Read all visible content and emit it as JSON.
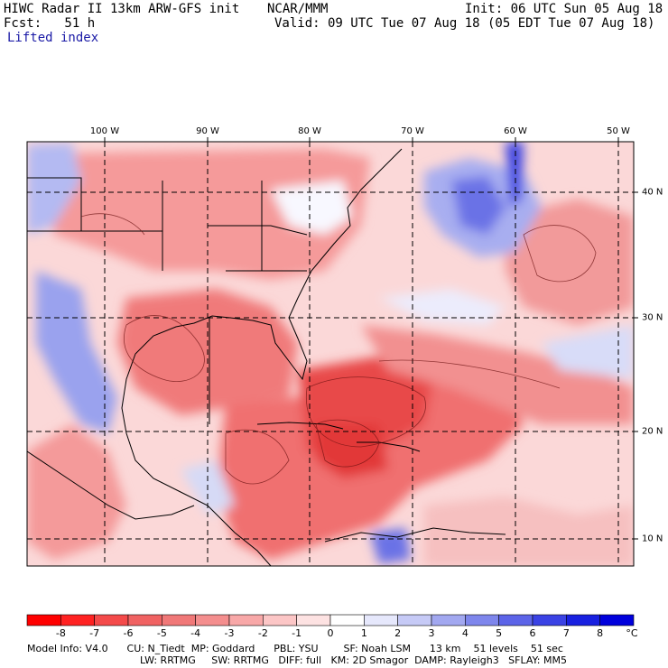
{
  "header": {
    "title": "HIWC Radar II 13km ARW-GFS init",
    "org": "NCAR/MMM",
    "init": "Init: 06 UTC Sun 05 Aug 18",
    "fcst": "Fcst:   51 h",
    "valid": "Valid: 09 UTC Tue 07 Aug 18 (05 EDT Tue 07 Aug 18)",
    "field": "Lifted index"
  },
  "map": {
    "lon_labels": [
      "100 W",
      "90 W",
      "80 W",
      "70 W",
      "60 W",
      "50 W"
    ],
    "lat_labels": [
      "40 N",
      "30 N",
      "20 N",
      "10 N"
    ]
  },
  "colorbar": {
    "labels": [
      "-8",
      "-7",
      "-6",
      "-5",
      "-4",
      "-3",
      "-2",
      "-1",
      "0",
      "1",
      "2",
      "3",
      "4",
      "5",
      "6",
      "7",
      "8"
    ],
    "unit": "°C",
    "colors": [
      "#ff0000",
      "#ff2222",
      "#f44a4a",
      "#f06262",
      "#f07878",
      "#f48e8e",
      "#f8a8a8",
      "#fcc6c6",
      "#fde2e2",
      "#ffffff",
      "#e6e8fc",
      "#c6caf6",
      "#a2a8f0",
      "#7e86ec",
      "#5c64e8",
      "#3a42e4",
      "#1820e0",
      "#0000dc"
    ]
  },
  "footer": {
    "line1": "Model Info: V4.0      CU: N_Tiedt  MP: Goddard      PBL: YSU        SF: Noah LSM      13 km    51 levels    51 sec",
    "line2": "LW: RRTMG     SW: RRTMG   DIFF: full   KM: 2D Smagor  DAMP: Rayleigh3   SFLAY: MM5"
  }
}
